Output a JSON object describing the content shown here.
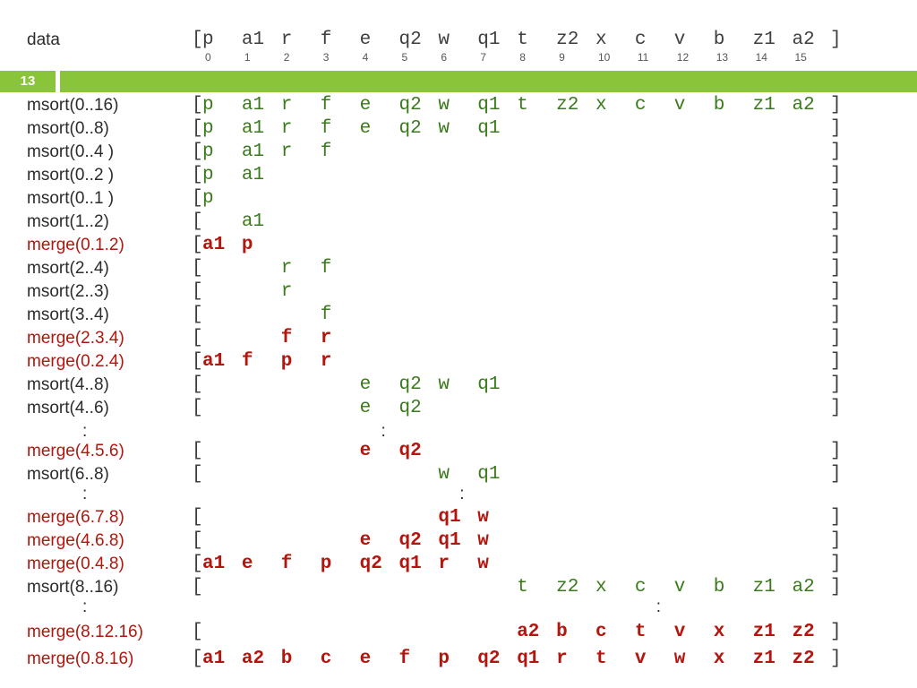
{
  "slide": {
    "number": "13"
  },
  "header": {
    "label": "data",
    "values": [
      "p",
      "a1",
      "r",
      "f",
      "e",
      "q2",
      "w",
      "q1",
      "t",
      "z2",
      "x",
      "c",
      "v",
      "b",
      "z1",
      "a2"
    ],
    "indices": [
      "0",
      "1",
      "2",
      "3",
      "4",
      "5",
      "6",
      "7",
      "8",
      "9",
      "10",
      "11",
      "12",
      "13",
      "14",
      "15"
    ],
    "open": "[",
    "close": "]"
  },
  "rows": [
    {
      "label": "msort(0..16)",
      "kind": "msort",
      "cells": [
        "p",
        "a1",
        "r",
        "f",
        "e",
        "q2",
        "w",
        "q1",
        "t",
        "z2",
        "x",
        "c",
        "v",
        "b",
        "z1",
        "a2"
      ]
    },
    {
      "label": "msort(0..8)",
      "kind": "msort",
      "cells": [
        "p",
        "a1",
        "r",
        "f",
        "e",
        "q2",
        "w",
        "q1"
      ]
    },
    {
      "label": "msort(0..4 )",
      "kind": "msort",
      "cells": [
        "p",
        "a1",
        "r",
        "f"
      ]
    },
    {
      "label": "msort(0..2 )",
      "kind": "msort",
      "cells": [
        "p",
        "a1"
      ]
    },
    {
      "label": "msort(0..1 )",
      "kind": "msort",
      "cells": [
        "p"
      ]
    },
    {
      "label": "msort(1..2)",
      "kind": "msort",
      "cells": [
        "",
        "a1"
      ]
    },
    {
      "label": "merge(0.1.2)",
      "kind": "merge",
      "cells": [
        "a1",
        "p"
      ]
    },
    {
      "label": "msort(2..4)",
      "kind": "msort",
      "cells": [
        "",
        "",
        "r",
        "f"
      ]
    },
    {
      "label": "msort(2..3)",
      "kind": "msort",
      "cells": [
        "",
        "",
        "r"
      ]
    },
    {
      "label": "msort(3..4)",
      "kind": "msort",
      "cells": [
        "",
        "",
        "",
        "f"
      ]
    },
    {
      "label": "merge(2.3.4)",
      "kind": "merge",
      "cells": [
        "",
        "",
        "f",
        "r"
      ]
    },
    {
      "label": "merge(0.2.4)",
      "kind": "merge",
      "cells": [
        "a1",
        "f",
        "p",
        "r"
      ]
    },
    {
      "label": "msort(4..8)",
      "kind": "msort",
      "cells": [
        "",
        "",
        "",
        "",
        "e",
        "q2",
        "w",
        "q1"
      ]
    },
    {
      "label": "msort(4..6)",
      "kind": "msort",
      "cells": [
        "",
        "",
        "",
        "",
        "e",
        "q2"
      ]
    },
    {
      "label": ":",
      "kind": "ellipsis",
      "dot_col": 5
    },
    {
      "label": "merge(4.5.6)",
      "kind": "merge",
      "cells": [
        "",
        "",
        "",
        "",
        "e",
        "q2"
      ]
    },
    {
      "label": "msort(6..8)",
      "kind": "msort",
      "cells": [
        "",
        "",
        "",
        "",
        "",
        "",
        "w",
        "q1"
      ]
    },
    {
      "label": ":",
      "kind": "ellipsis",
      "dot_col": 7
    },
    {
      "label": "merge(6.7.8)",
      "kind": "merge",
      "cells": [
        "",
        "",
        "",
        "",
        "",
        "",
        "q1",
        "w"
      ]
    },
    {
      "label": "merge(4.6.8)",
      "kind": "merge",
      "cells": [
        "",
        "",
        "",
        "",
        "e",
        "q2",
        "q1",
        "w"
      ]
    },
    {
      "label": "merge(0.4.8)",
      "kind": "merge",
      "cells": [
        "a1",
        "e",
        "f",
        "p",
        "q2",
        "q1",
        "r",
        "w"
      ]
    },
    {
      "label": "msort(8..16)",
      "kind": "msort",
      "cells": [
        "",
        "",
        "",
        "",
        "",
        "",
        "",
        "",
        "t",
        "z2",
        "x",
        "c",
        "v",
        "b",
        "z1",
        "a2"
      ]
    },
    {
      "label": ":",
      "kind": "ellipsis",
      "dot_col": 12
    },
    {
      "label": "merge(8.12.16)",
      "kind": "merge",
      "cells": [
        "",
        "",
        "",
        "",
        "",
        "",
        "",
        "",
        "a2",
        "b",
        "c",
        "t",
        "v",
        "x",
        "z1",
        "z2"
      ]
    },
    {
      "label": "merge(0.8.16)",
      "kind": "merge",
      "cells": [
        "a1",
        "a2",
        "b",
        "c",
        "e",
        "f",
        "p",
        "q2",
        "q1",
        "r",
        "t",
        "v",
        "w",
        "x",
        "z1",
        "z2"
      ]
    }
  ],
  "colors": {
    "msort_label": "#2b2b2b",
    "merge_label": "#b3160e",
    "msort_value": "#3a7a1c",
    "merge_value": "#b3160e",
    "accent_bar": "#8ac43a"
  }
}
